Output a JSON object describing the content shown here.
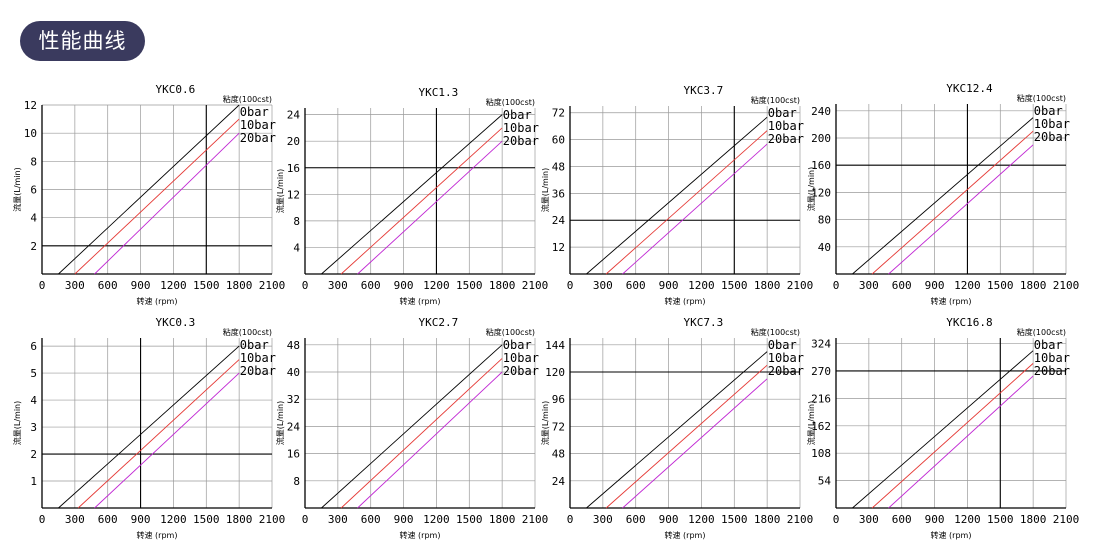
{
  "header": {
    "title": "性能曲线"
  },
  "chart_data": [
    {
      "type": "line",
      "title": "YKC0.6",
      "viscosity_label": "粘度(100cst)",
      "xlabel": "转速 (rpm)",
      "ylabel": "流量(L/min)",
      "xticks": [
        0,
        300,
        600,
        900,
        1200,
        1500,
        1800,
        2100
      ],
      "yticks": [
        2,
        4,
        6,
        8,
        10,
        12
      ],
      "xlim": [
        0,
        2100
      ],
      "ylim": [
        0,
        12
      ],
      "grid_x": [
        1500
      ],
      "grid_y": [
        2
      ],
      "series": [
        {
          "name": "0bar",
          "color": "#000000",
          "x": [
            150,
            1800
          ],
          "y": [
            0,
            12
          ]
        },
        {
          "name": "10bar",
          "color": "#e53935",
          "x": [
            300,
            1800
          ],
          "y": [
            0,
            11
          ]
        },
        {
          "name": "20bar",
          "color": "#c026d3",
          "x": [
            480,
            1800
          ],
          "y": [
            0,
            10
          ]
        }
      ]
    },
    {
      "type": "line",
      "title": "YKC1.3",
      "viscosity_label": "粘度(100cst)",
      "xlabel": "转速 (rpm)",
      "ylabel": "流量(L/min)",
      "xticks": [
        0,
        300,
        600,
        900,
        1200,
        1500,
        1800,
        2100
      ],
      "yticks": [
        4,
        8,
        12,
        16,
        20,
        24
      ],
      "xlim": [
        0,
        2100
      ],
      "ylim": [
        0,
        25
      ],
      "grid_x": [
        1200
      ],
      "grid_y": [
        16
      ],
      "series": [
        {
          "name": "0bar",
          "color": "#000000",
          "x": [
            150,
            1800
          ],
          "y": [
            0,
            24
          ]
        },
        {
          "name": "10bar",
          "color": "#e53935",
          "x": [
            330,
            1800
          ],
          "y": [
            0,
            22
          ]
        },
        {
          "name": "20bar",
          "color": "#c026d3",
          "x": [
            480,
            1800
          ],
          "y": [
            0,
            20
          ]
        }
      ]
    },
    {
      "type": "line",
      "title": "YKC3.7",
      "viscosity_label": "粘度(100cst)",
      "xlabel": "转速 (rpm)",
      "ylabel": "流量(L/min)",
      "xticks": [
        0,
        300,
        600,
        900,
        1200,
        1500,
        1800,
        2100
      ],
      "yticks": [
        12,
        24,
        36,
        48,
        60,
        72
      ],
      "xlim": [
        0,
        2100
      ],
      "ylim": [
        0,
        75
      ],
      "grid_x": [
        1500
      ],
      "grid_y": [
        24
      ],
      "series": [
        {
          "name": "0bar",
          "color": "#000000",
          "x": [
            150,
            1800
          ],
          "y": [
            0,
            70
          ]
        },
        {
          "name": "10bar",
          "color": "#e53935",
          "x": [
            330,
            1800
          ],
          "y": [
            0,
            64
          ]
        },
        {
          "name": "20bar",
          "color": "#c026d3",
          "x": [
            480,
            1800
          ],
          "y": [
            0,
            58
          ]
        }
      ]
    },
    {
      "type": "line",
      "title": "YKC12.4",
      "viscosity_label": "粘度(100cst)",
      "xlabel": "转速 (rpm)",
      "ylabel": "流量(L/min)",
      "xticks": [
        0,
        300,
        600,
        900,
        1200,
        1500,
        1800,
        2100
      ],
      "yticks": [
        40,
        80,
        120,
        160,
        200,
        240
      ],
      "xlim": [
        0,
        2100
      ],
      "ylim": [
        0,
        250
      ],
      "grid_x": [
        1200
      ],
      "grid_y": [
        160
      ],
      "series": [
        {
          "name": "0bar",
          "color": "#000000",
          "x": [
            150,
            1800
          ],
          "y": [
            0,
            230
          ]
        },
        {
          "name": "10bar",
          "color": "#e53935",
          "x": [
            330,
            1800
          ],
          "y": [
            0,
            210
          ]
        },
        {
          "name": "20bar",
          "color": "#c026d3",
          "x": [
            480,
            1800
          ],
          "y": [
            0,
            190
          ]
        }
      ]
    },
    {
      "type": "line",
      "title": "YKC0.3",
      "viscosity_label": "粘度(100cst)",
      "xlabel": "转速 (rpm)",
      "ylabel": "流量(L/min)",
      "xticks": [
        0,
        300,
        600,
        900,
        1200,
        1500,
        1800,
        2100
      ],
      "yticks": [
        1,
        2,
        3,
        4,
        5,
        6
      ],
      "xlim": [
        0,
        2100
      ],
      "ylim": [
        0,
        6.3
      ],
      "grid_x": [
        900
      ],
      "grid_y": [
        2
      ],
      "series": [
        {
          "name": "0bar",
          "color": "#000000",
          "x": [
            150,
            1800
          ],
          "y": [
            0,
            6
          ]
        },
        {
          "name": "10bar",
          "color": "#e53935",
          "x": [
            330,
            1800
          ],
          "y": [
            0,
            5.5
          ]
        },
        {
          "name": "20bar",
          "color": "#c026d3",
          "x": [
            480,
            1800
          ],
          "y": [
            0,
            5
          ]
        }
      ]
    },
    {
      "type": "line",
      "title": "YKC2.7",
      "viscosity_label": "粘度(100cst)",
      "xlabel": "转速 (rpm)",
      "ylabel": "流量(L/min)",
      "xticks": [
        0,
        300,
        600,
        900,
        1200,
        1500,
        1800,
        2100
      ],
      "yticks": [
        8,
        16,
        24,
        32,
        40,
        48
      ],
      "xlim": [
        0,
        2100
      ],
      "ylim": [
        0,
        50
      ],
      "grid_x": [],
      "grid_y": [],
      "series": [
        {
          "name": "0bar",
          "color": "#000000",
          "x": [
            150,
            1800
          ],
          "y": [
            0,
            48
          ]
        },
        {
          "name": "10bar",
          "color": "#e53935",
          "x": [
            330,
            1800
          ],
          "y": [
            0,
            44
          ]
        },
        {
          "name": "20bar",
          "color": "#c026d3",
          "x": [
            480,
            1800
          ],
          "y": [
            0,
            40
          ]
        }
      ]
    },
    {
      "type": "line",
      "title": "YKC7.3",
      "viscosity_label": "粘度(100cst)",
      "xlabel": "转速 (rpm)",
      "ylabel": "流量(L/min)",
      "xticks": [
        0,
        300,
        600,
        900,
        1200,
        1500,
        1800,
        2100
      ],
      "yticks": [
        24,
        48,
        72,
        96,
        120,
        144
      ],
      "xlim": [
        0,
        2100
      ],
      "ylim": [
        0,
        150
      ],
      "grid_x": [],
      "grid_y": [
        120
      ],
      "series": [
        {
          "name": "0bar",
          "color": "#000000",
          "x": [
            150,
            1800
          ],
          "y": [
            0,
            138
          ]
        },
        {
          "name": "10bar",
          "color": "#e53935",
          "x": [
            330,
            1800
          ],
          "y": [
            0,
            126
          ]
        },
        {
          "name": "20bar",
          "color": "#c026d3",
          "x": [
            480,
            1800
          ],
          "y": [
            0,
            114
          ]
        }
      ]
    },
    {
      "type": "line",
      "title": "YKC16.8",
      "viscosity_label": "粘度(100cst)",
      "xlabel": "转速 (rpm)",
      "ylabel": "流量(L/min)",
      "xticks": [
        0,
        300,
        600,
        900,
        1200,
        1500,
        1800,
        2100
      ],
      "yticks": [
        54,
        108,
        162,
        216,
        270,
        324
      ],
      "xlim": [
        0,
        2100
      ],
      "ylim": [
        0,
        335
      ],
      "grid_x": [
        1500
      ],
      "grid_y": [
        270
      ],
      "series": [
        {
          "name": "0bar",
          "color": "#000000",
          "x": [
            150,
            1800
          ],
          "y": [
            0,
            310
          ]
        },
        {
          "name": "10bar",
          "color": "#e53935",
          "x": [
            330,
            1800
          ],
          "y": [
            0,
            285
          ]
        },
        {
          "name": "20bar",
          "color": "#c026d3",
          "x": [
            480,
            1800
          ],
          "y": [
            0,
            260
          ]
        }
      ]
    }
  ]
}
